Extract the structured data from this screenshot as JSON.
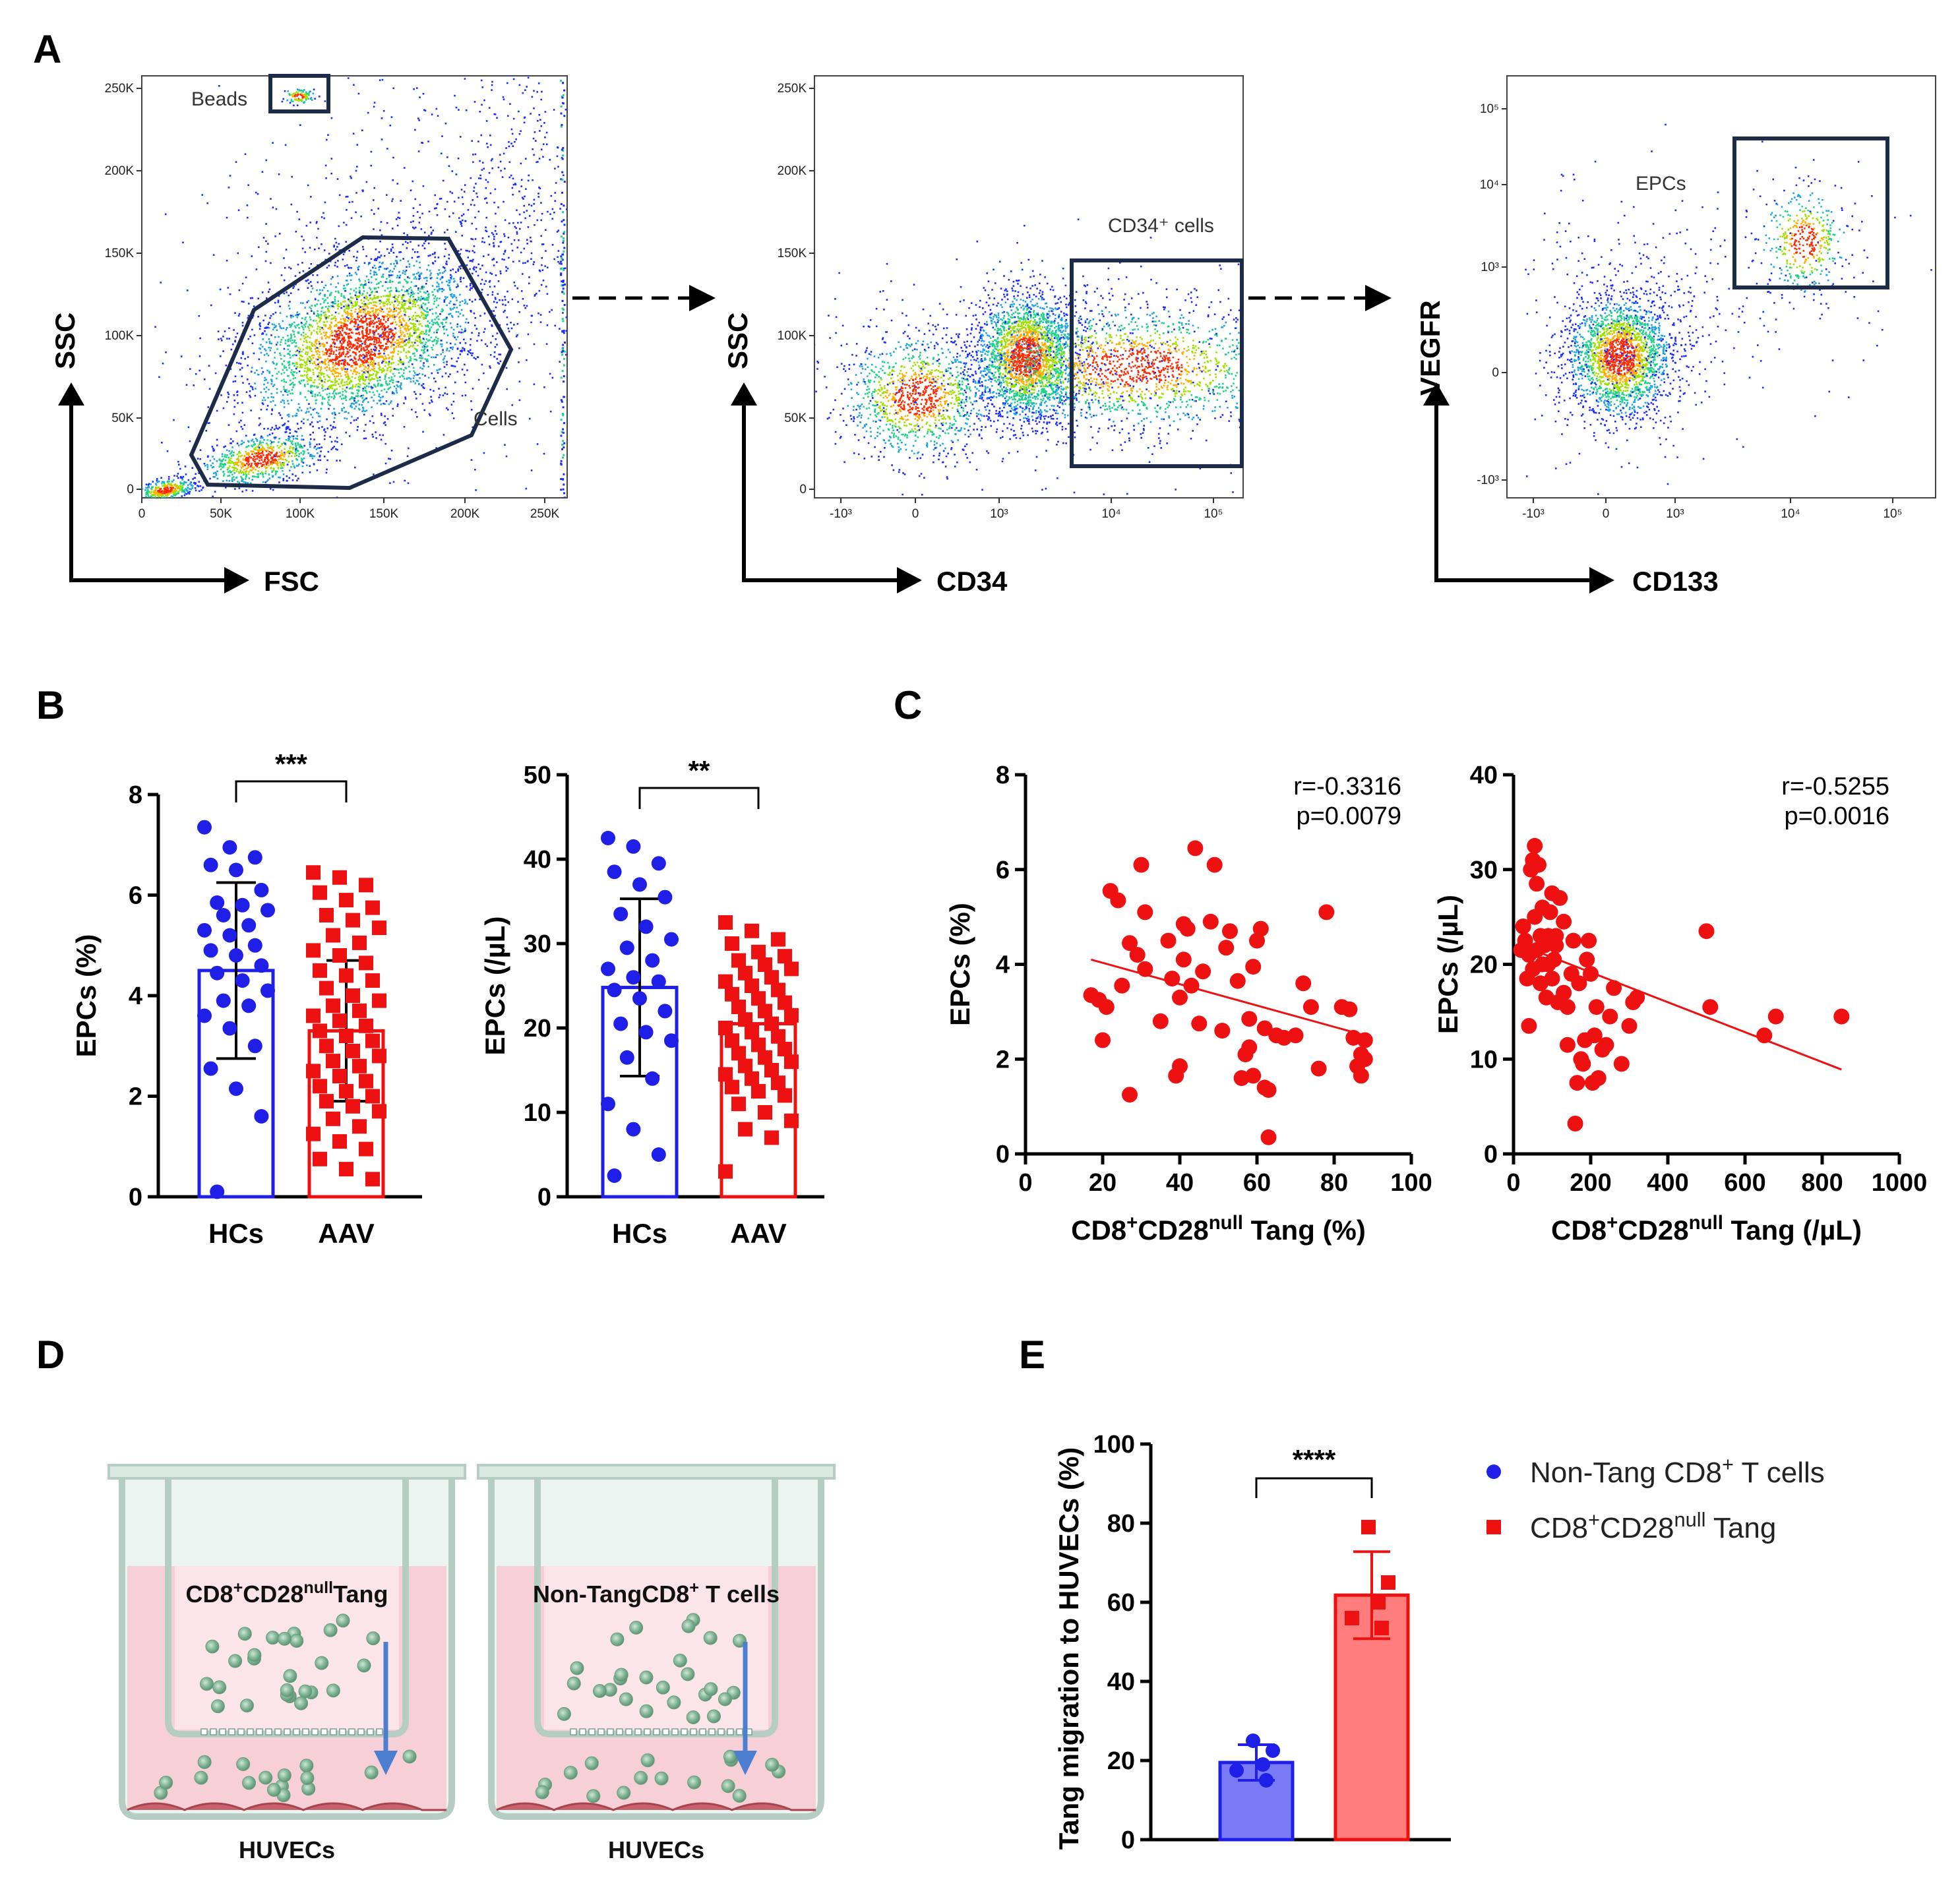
{
  "panels": {
    "A": "A",
    "B": "B",
    "C": "C",
    "D": "D",
    "E": "E"
  },
  "flow": {
    "plot1": {
      "xlabel": "FSC",
      "ylabel": "SSC",
      "xticks": [
        "0",
        "50K",
        "100K",
        "150K",
        "200K",
        "250K"
      ],
      "yticks": [
        "0",
        "50K",
        "100K",
        "150K",
        "200K",
        "250K"
      ],
      "gate_beads": "Beads",
      "gate_cells": "Cells"
    },
    "plot2": {
      "xlabel": "CD34",
      "ylabel": "SSC",
      "xticks": [
        "-10³",
        "0",
        "10³",
        "10⁴",
        "10⁵"
      ],
      "yticks": [
        "0",
        "50K",
        "100K",
        "150K",
        "200K",
        "250K"
      ],
      "gate": "CD34⁺ cells"
    },
    "plot3": {
      "xlabel": "CD133",
      "ylabel": "VEGFR",
      "xticks": [
        "-10³",
        "0",
        "10³",
        "10⁴",
        "10⁵"
      ],
      "yticks": [
        "-10³",
        "0",
        "10³",
        "10⁴",
        "10⁵"
      ],
      "gate": "EPCs"
    }
  },
  "colors": {
    "hc": "#1f1fe8",
    "aav": "#ee1111",
    "scatter": "#ee1111",
    "gate": "#1c2b47",
    "bar_blue_fill": "#7a7af5",
    "bar_red_fill": "#ff7d7d"
  },
  "chart_data": [
    {
      "id": "B1",
      "type": "bar",
      "categories": [
        "HCs",
        "AAV"
      ],
      "values": [
        4.5,
        3.3
      ],
      "error": [
        1.75,
        1.4
      ],
      "ylabel": "EPCs (%)",
      "ylim": [
        0,
        8
      ],
      "yticks": [
        "0",
        "2",
        "4",
        "6",
        "8"
      ],
      "significance": "***",
      "points": {
        "HCs": [
          7.35,
          6.95,
          6.75,
          6.6,
          6.5,
          6.1,
          5.85,
          5.8,
          5.7,
          5.6,
          5.4,
          5.3,
          5.2,
          5.0,
          4.9,
          4.8,
          4.6,
          4.45,
          4.3,
          4.1,
          3.9,
          3.8,
          3.6,
          3.35,
          3.0,
          2.55,
          2.15,
          1.6,
          0.1
        ],
        "AAV": [
          6.45,
          6.35,
          6.2,
          6.05,
          5.9,
          5.75,
          5.6,
          5.5,
          5.35,
          5.2,
          5.05,
          4.9,
          4.8,
          4.65,
          4.5,
          4.4,
          4.3,
          4.15,
          4.0,
          3.9,
          3.8,
          3.7,
          3.6,
          3.5,
          3.4,
          3.3,
          3.2,
          3.1,
          3.0,
          2.9,
          2.8,
          2.7,
          2.6,
          2.5,
          2.4,
          2.3,
          2.2,
          2.1,
          2.0,
          1.9,
          1.8,
          1.7,
          1.55,
          1.4,
          1.25,
          1.1,
          0.95,
          0.75,
          0.55,
          0.35
        ]
      }
    },
    {
      "id": "B2",
      "type": "bar",
      "categories": [
        "HCs",
        "AAV"
      ],
      "values": [
        24.8,
        20.5
      ],
      "error": [
        10.5,
        0
      ],
      "ylabel": "EPCs (/µL)",
      "ylim": [
        0,
        50
      ],
      "yticks": [
        "0",
        "10",
        "20",
        "30",
        "40",
        "50"
      ],
      "significance": "**",
      "points": {
        "HCs": [
          42.5,
          41.5,
          39.5,
          38.5,
          37.0,
          35.5,
          33.5,
          32.0,
          30.5,
          29.5,
          28.0,
          27.0,
          26.0,
          25.5,
          24.5,
          23.5,
          22.0,
          20.5,
          19.5,
          18.5,
          16.5,
          14.0,
          11.0,
          8.0,
          5.0,
          2.5
        ],
        "AAV": [
          32.5,
          31.5,
          30.5,
          30.0,
          29.0,
          28.5,
          28.0,
          27.5,
          27.0,
          26.5,
          26.0,
          25.5,
          25.0,
          24.5,
          24.0,
          23.5,
          23.0,
          22.5,
          22.0,
          21.5,
          21.0,
          20.5,
          20.0,
          19.5,
          19.0,
          18.5,
          18.0,
          17.5,
          17.0,
          16.5,
          16.0,
          15.5,
          15.0,
          14.5,
          14.0,
          13.5,
          13.0,
          12.5,
          12.0,
          11.0,
          10.0,
          9.0,
          8.0,
          7.0,
          3.0
        ]
      }
    },
    {
      "id": "C1",
      "type": "scatter",
      "xlabel_main": "CD8",
      "xlabel_sup1": "+",
      "xlabel_mid": "CD28",
      "xlabel_sup2": "null",
      "xlabel_end": " Tang (%)",
      "ylabel": "EPCs (%)",
      "xlim": [
        0,
        100
      ],
      "ylim": [
        0,
        8
      ],
      "xticks": [
        "0",
        "20",
        "40",
        "60",
        "80",
        "100"
      ],
      "yticks": [
        "0",
        "2",
        "4",
        "6",
        "8"
      ],
      "r_text": "r=-0.3316",
      "p_text": "p=0.0079",
      "fit": [
        [
          17,
          4.1
        ],
        [
          88,
          2.5
        ]
      ],
      "points": [
        [
          17,
          3.35
        ],
        [
          19,
          3.25
        ],
        [
          20,
          2.4
        ],
        [
          21,
          3.1
        ],
        [
          22,
          5.55
        ],
        [
          24,
          5.35
        ],
        [
          25,
          3.55
        ],
        [
          27,
          1.25
        ],
        [
          27,
          4.45
        ],
        [
          29,
          4.2
        ],
        [
          30,
          6.1
        ],
        [
          31,
          3.9
        ],
        [
          31,
          5.1
        ],
        [
          35,
          2.8
        ],
        [
          37,
          4.5
        ],
        [
          38,
          3.7
        ],
        [
          39,
          1.65
        ],
        [
          40,
          1.85
        ],
        [
          40,
          3.3
        ],
        [
          41,
          4.1
        ],
        [
          41,
          4.85
        ],
        [
          42,
          4.75
        ],
        [
          43,
          3.55
        ],
        [
          44,
          6.45
        ],
        [
          45,
          2.75
        ],
        [
          46,
          3.85
        ],
        [
          48,
          4.9
        ],
        [
          49,
          6.1
        ],
        [
          51,
          2.6
        ],
        [
          52,
          4.35
        ],
        [
          53,
          4.7
        ],
        [
          55,
          3.65
        ],
        [
          56,
          1.6
        ],
        [
          57,
          2.1
        ],
        [
          58,
          2.25
        ],
        [
          58,
          2.85
        ],
        [
          59,
          1.65
        ],
        [
          59,
          3.95
        ],
        [
          60,
          4.5
        ],
        [
          61,
          4.75
        ],
        [
          62,
          2.65
        ],
        [
          62,
          1.4
        ],
        [
          63,
          1.35
        ],
        [
          63,
          0.35
        ],
        [
          65,
          2.5
        ],
        [
          67,
          2.45
        ],
        [
          70,
          2.5
        ],
        [
          72,
          3.6
        ],
        [
          74,
          3.1
        ],
        [
          76,
          1.8
        ],
        [
          78,
          5.1
        ],
        [
          82,
          3.1
        ],
        [
          84,
          3.05
        ],
        [
          85,
          2.45
        ],
        [
          86,
          1.85
        ],
        [
          87,
          2.1
        ],
        [
          87,
          1.65
        ],
        [
          88,
          2.0
        ],
        [
          88,
          2.4
        ]
      ]
    },
    {
      "id": "C2",
      "type": "scatter",
      "xlabel_main": "CD8",
      "xlabel_sup1": "+",
      "xlabel_mid": "CD28",
      "xlabel_sup2": "null",
      "xlabel_end": " Tang (/µL)",
      "ylabel": "EPCs (/µL)",
      "xlim": [
        0,
        1000
      ],
      "ylim": [
        0,
        40
      ],
      "xticks": [
        "0",
        "200",
        "400",
        "600",
        "800",
        "1000"
      ],
      "yticks": [
        "0",
        "10",
        "20",
        "30",
        "40"
      ],
      "r_text": "r=-0.5255",
      "p_text": "p=0.0016",
      "fit": [
        [
          20,
          22.0
        ],
        [
          850,
          8.9
        ]
      ],
      "points": [
        [
          20,
          21.5
        ],
        [
          25,
          24.0
        ],
        [
          30,
          22.5
        ],
        [
          35,
          18.5
        ],
        [
          40,
          13.5
        ],
        [
          40,
          21.0
        ],
        [
          45,
          30.0
        ],
        [
          50,
          19.5
        ],
        [
          50,
          31.0
        ],
        [
          55,
          25.0
        ],
        [
          55,
          32.5
        ],
        [
          60,
          28.5
        ],
        [
          60,
          21.5
        ],
        [
          65,
          30.5
        ],
        [
          70,
          23.0
        ],
        [
          70,
          18.0
        ],
        [
          75,
          26.0
        ],
        [
          75,
          20.0
        ],
        [
          80,
          22.0
        ],
        [
          85,
          16.5
        ],
        [
          90,
          20.0
        ],
        [
          90,
          23.0
        ],
        [
          95,
          25.5
        ],
        [
          100,
          18.5
        ],
        [
          100,
          27.5
        ],
        [
          105,
          20.5
        ],
        [
          110,
          23.0
        ],
        [
          110,
          22.0
        ],
        [
          115,
          16.0
        ],
        [
          120,
          27.0
        ],
        [
          130,
          24.5
        ],
        [
          130,
          17.0
        ],
        [
          140,
          15.5
        ],
        [
          140,
          11.5
        ],
        [
          150,
          19.0
        ],
        [
          155,
          22.5
        ],
        [
          160,
          3.2
        ],
        [
          165,
          7.5
        ],
        [
          170,
          18.0
        ],
        [
          175,
          10.0
        ],
        [
          180,
          9.5
        ],
        [
          185,
          12.0
        ],
        [
          190,
          20.5
        ],
        [
          195,
          22.5
        ],
        [
          200,
          19.0
        ],
        [
          205,
          7.5
        ],
        [
          210,
          12.5
        ],
        [
          215,
          15.5
        ],
        [
          220,
          8.0
        ],
        [
          230,
          11.0
        ],
        [
          240,
          11.5
        ],
        [
          250,
          14.5
        ],
        [
          260,
          17.5
        ],
        [
          280,
          9.5
        ],
        [
          300,
          13.5
        ],
        [
          310,
          16.0
        ],
        [
          320,
          16.5
        ],
        [
          500,
          23.5
        ],
        [
          510,
          15.5
        ],
        [
          650,
          12.5
        ],
        [
          680,
          14.5
        ],
        [
          850,
          14.5
        ]
      ]
    },
    {
      "id": "E",
      "type": "bar",
      "categories": [
        "Non-Tang CD8+ T cells",
        "CD8+CD28null Tang"
      ],
      "values": [
        19.5,
        61.8
      ],
      "error": [
        4.5,
        11.0
      ],
      "ylabel": "Tang migration to HUVECs (%)",
      "ylim": [
        0,
        100
      ],
      "yticks": [
        "0",
        "20",
        "40",
        "60",
        "80",
        "100"
      ],
      "significance": "****",
      "points": {
        "Non-Tang": [
          25.0,
          22.5,
          19.0,
          17.5,
          15.0
        ],
        "Tang": [
          79.0,
          65.0,
          60.0,
          56.0,
          53.5
        ]
      }
    }
  ],
  "scheme": {
    "left_label": "CD8⁺CD28ⁿᵘˡˡ Tang",
    "left_main": "CD8",
    "left_sup1": "+",
    "left_mid": "CD28",
    "left_sup2": "null",
    "left_end": "Tang",
    "right_main": "Non-TangCD8",
    "right_sup": "+",
    "right_end": " T cells",
    "bottom_left": "HUVECs",
    "bottom_right": "HUVECs"
  },
  "legend": {
    "item1_main": "Non-Tang CD8",
    "item1_sup": "+",
    "item1_end": " T cells",
    "item2_main": "CD8",
    "item2_sup1": "+",
    "item2_mid": "CD28",
    "item2_sup2": "null",
    "item2_end": " Tang"
  }
}
